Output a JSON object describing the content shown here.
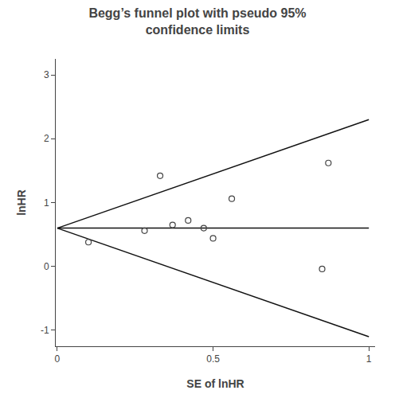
{
  "chart_data": {
    "type": "scatter",
    "title": "Begg’s funnel plot with pseudo 95%\nconfidence limits",
    "xlabel": "SE of lnHR",
    "ylabel": "lnHR",
    "xlim": [
      -0.005,
      1.02
    ],
    "ylim": [
      -1.25,
      3.25
    ],
    "xticks": [
      0,
      0.5,
      1
    ],
    "yticks": [
      -1,
      0,
      1,
      2,
      3
    ],
    "grid": false,
    "series": [
      {
        "type": "line",
        "line_style": "solid",
        "color": "#111111",
        "x": [
          0.0,
          1.0
        ],
        "values": [
          0.6,
          2.3
        ]
      },
      {
        "type": "line",
        "line_style": "solid",
        "color": "#111111",
        "x": [
          0.0,
          1.0
        ],
        "values": [
          0.6,
          -1.1
        ]
      },
      {
        "type": "line",
        "line_style": "solid",
        "color": "#111111",
        "x": [
          0.0,
          1.0
        ],
        "values": [
          0.6,
          0.6
        ]
      },
      {
        "type": "scatter",
        "marker": "circle-open",
        "color": "#444444",
        "x": [
          0.1,
          0.28,
          0.33,
          0.37,
          0.42,
          0.47,
          0.5,
          0.56,
          0.85,
          0.87
        ],
        "values": [
          0.38,
          0.56,
          1.42,
          0.65,
          0.72,
          0.6,
          0.44,
          1.06,
          -0.04,
          1.62
        ]
      }
    ]
  }
}
